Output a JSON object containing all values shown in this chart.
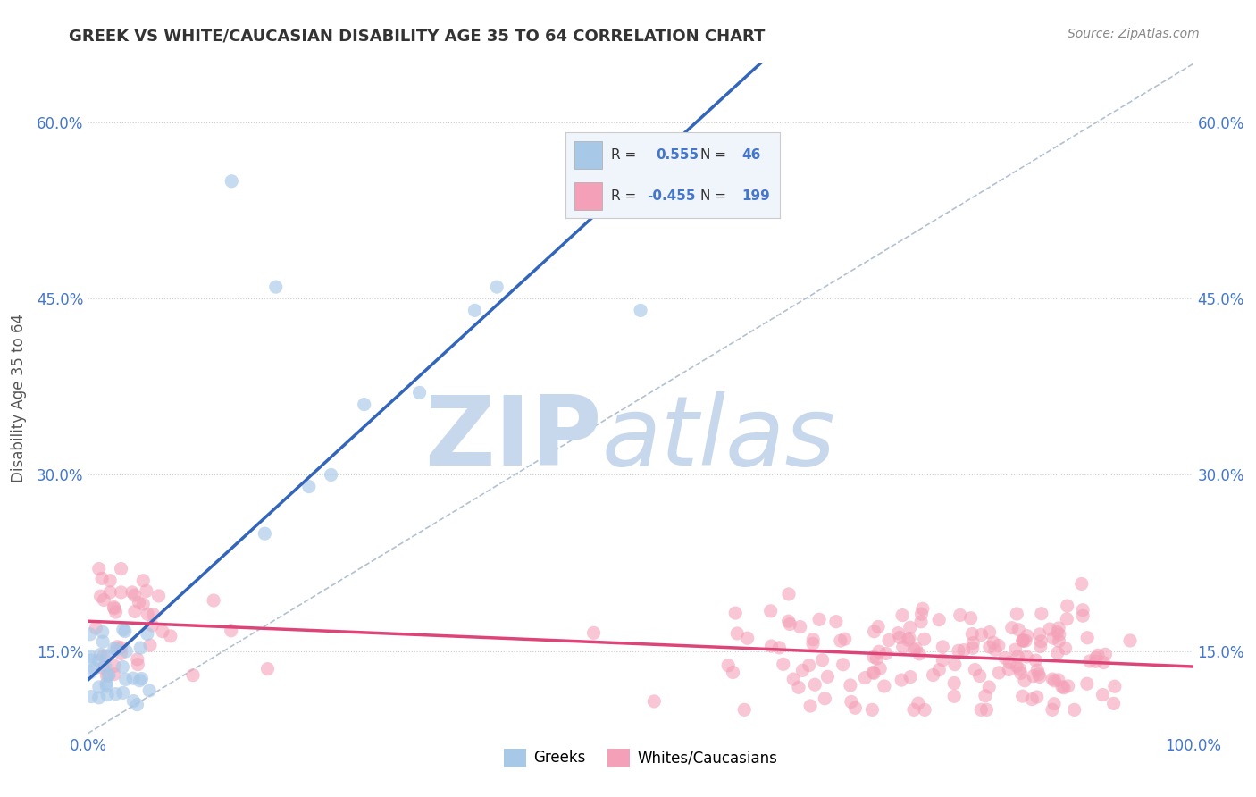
{
  "title": "GREEK VS WHITE/CAUCASIAN DISABILITY AGE 35 TO 64 CORRELATION CHART",
  "source": "Source: ZipAtlas.com",
  "ylabel": "Disability Age 35 to 64",
  "xlim": [
    0.0,
    1.0
  ],
  "ylim": [
    0.08,
    0.65
  ],
  "yticks": [
    0.15,
    0.3,
    0.45,
    0.6
  ],
  "ytick_labels": [
    "15.0%",
    "30.0%",
    "45.0%",
    "60.0%"
  ],
  "xtick_labels": [
    "0.0%",
    "100.0%"
  ],
  "greek_R": 0.555,
  "greek_N": 46,
  "white_R": -0.455,
  "white_N": 199,
  "blue_color": "#a8c8e8",
  "blue_line_color": "#3366bb",
  "pink_color": "#f4a0b8",
  "pink_line_color": "#dd4477",
  "watermark_zip_color": "#c8d8ec",
  "watermark_atlas_color": "#c8d8ec",
  "grid_color": "#cccccc",
  "background_color": "#ffffff",
  "title_color": "#333333",
  "source_color": "#888888",
  "axis_label_color": "#555555",
  "tick_label_color": "#4477cc",
  "dash_line_color": "#aabbcc",
  "legend_bg": "#f0f4fb",
  "legend_border": "#cccccc"
}
